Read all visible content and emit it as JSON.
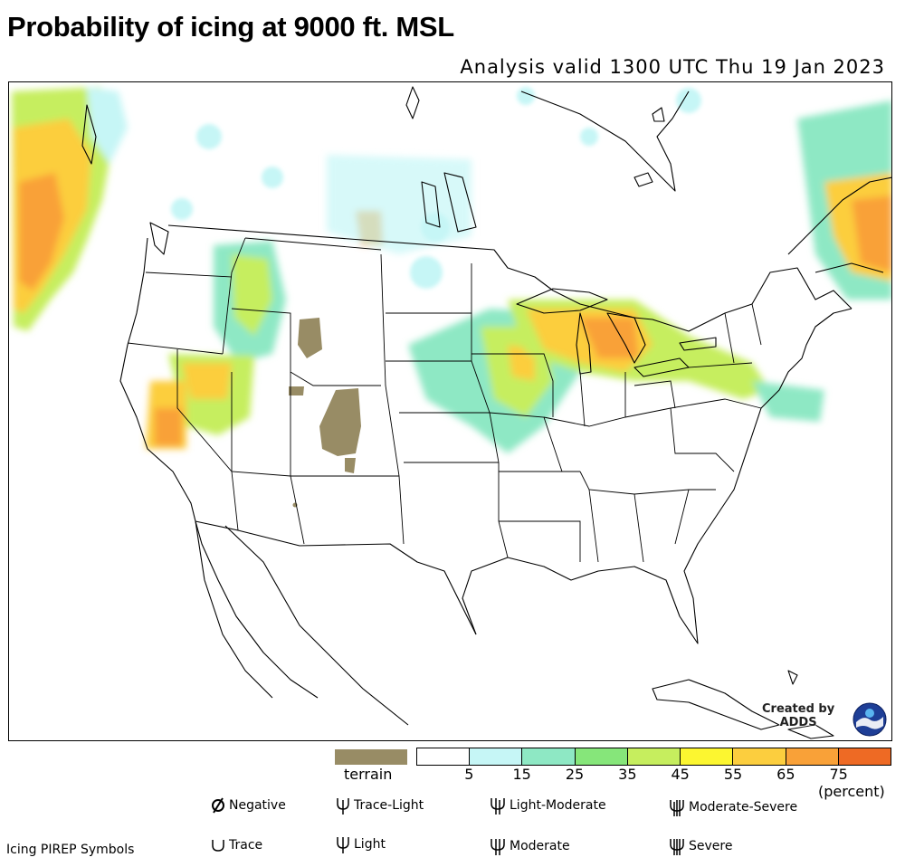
{
  "header": {
    "title": "Probability of icing at 9000 ft. MSL",
    "subtitle": "Analysis valid 1300 UTC Thu 19 Jan 2023"
  },
  "map": {
    "region": "Continental United States, southern Canada, northern Mexico",
    "credit_line1": "Created by",
    "credit_line2": "ADDS",
    "logo_icon": "noaa-logo-icon"
  },
  "legend": {
    "terrain_label": "terrain",
    "terrain_color": "#988c65",
    "scale_colors": [
      "#ffffff",
      "#c6f6f6",
      "#8ee8c4",
      "#86e67a",
      "#c6ee5e",
      "#fcf630",
      "#fcce3e",
      "#f9a138",
      "#ee6a24"
    ],
    "ticks": [
      "5",
      "15",
      "25",
      "35",
      "45",
      "55",
      "65",
      "75"
    ],
    "unit_label": "(percent)"
  },
  "pirep": {
    "title": "Icing PIREP Symbols",
    "negative": "Negative",
    "trace": "Trace",
    "trace_light": "Trace-Light",
    "light": "Light",
    "light_moderate": "Light-Moderate",
    "moderate": "Moderate",
    "moderate_severe": "Moderate-Severe",
    "severe": "Severe"
  }
}
